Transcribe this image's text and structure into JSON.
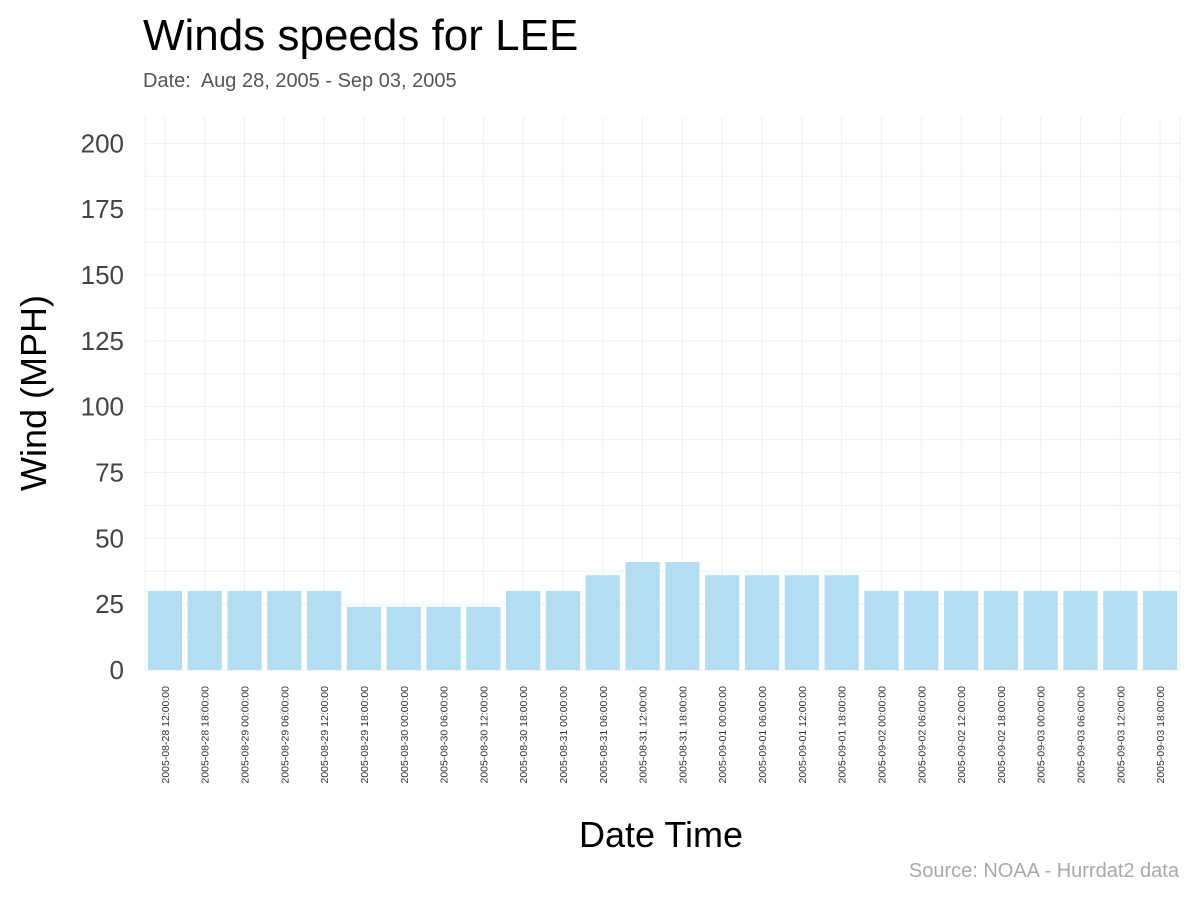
{
  "chart_data": {
    "type": "bar",
    "title": "Winds speeds for LEE",
    "subtitle": "Date:  Aug 28, 2005 - Sep 03, 2005",
    "caption": "Source: NOAA - Hurrdat2 data",
    "xlabel": "Date Time",
    "ylabel": "Wind (MPH)",
    "ylim": [
      0,
      210
    ],
    "yticks": [
      0,
      25,
      50,
      75,
      100,
      125,
      150,
      175,
      200
    ],
    "grid": true,
    "bar_color": "#b3ddf2",
    "categories": [
      "2005-08-28 12:00:00",
      "2005-08-28 18:00:00",
      "2005-08-29 00:00:00",
      "2005-08-29 06:00:00",
      "2005-08-29 12:00:00",
      "2005-08-29 18:00:00",
      "2005-08-30 00:00:00",
      "2005-08-30 06:00:00",
      "2005-08-30 12:00:00",
      "2005-08-30 18:00:00",
      "2005-08-31 00:00:00",
      "2005-08-31 06:00:00",
      "2005-08-31 12:00:00",
      "2005-08-31 18:00:00",
      "2005-09-01 00:00:00",
      "2005-09-01 06:00:00",
      "2005-09-01 12:00:00",
      "2005-09-01 18:00:00",
      "2005-09-02 00:00:00",
      "2005-09-02 06:00:00",
      "2005-09-02 12:00:00",
      "2005-09-02 18:00:00",
      "2005-09-03 00:00:00",
      "2005-09-03 06:00:00",
      "2005-09-03 12:00:00",
      "2005-09-03 18:00:00"
    ],
    "values": [
      30,
      30,
      30,
      30,
      30,
      24,
      24,
      24,
      24,
      30,
      30,
      36,
      41,
      41,
      36,
      36,
      36,
      36,
      30,
      30,
      30,
      30,
      30,
      30,
      30,
      30
    ]
  }
}
